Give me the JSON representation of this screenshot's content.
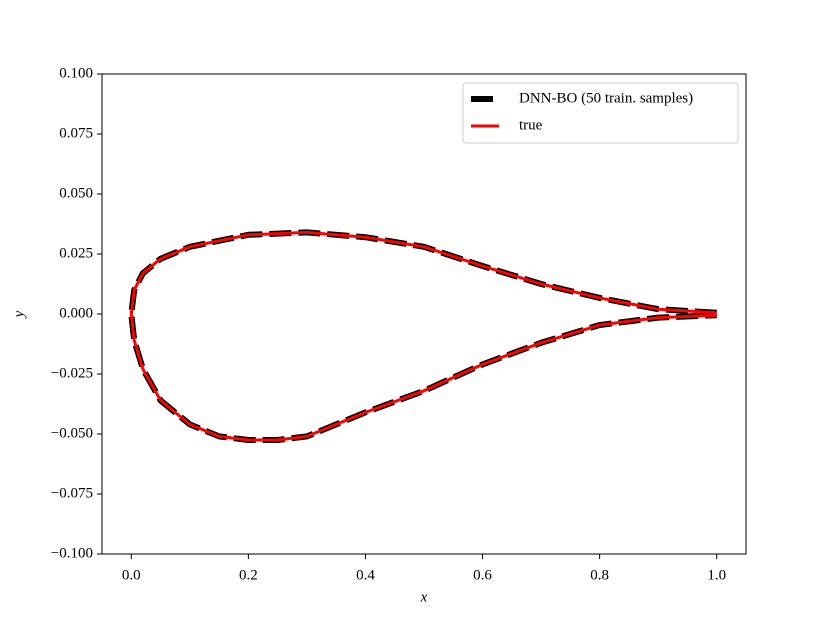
{
  "chart_data": {
    "type": "line",
    "xlabel": "x",
    "ylabel": "y",
    "x": [
      1.0,
      0.9,
      0.8,
      0.7,
      0.6,
      0.5,
      0.4,
      0.3,
      0.2,
      0.1,
      0.05,
      0.02,
      0.005,
      0.0,
      0.005,
      0.02,
      0.05,
      0.1,
      0.15,
      0.2,
      0.25,
      0.3,
      0.4,
      0.5,
      0.6,
      0.7,
      0.8,
      0.9,
      1.0
    ],
    "series": [
      {
        "name": "DNN-BO (50 train. samples)",
        "color": "#000000",
        "dashed": true,
        "values": [
          0.0005,
          0.002,
          0.0067,
          0.0125,
          0.02,
          0.028,
          0.032,
          0.034,
          0.033,
          0.028,
          0.023,
          0.017,
          0.01,
          0.0,
          -0.011,
          -0.023,
          -0.036,
          -0.046,
          -0.051,
          -0.0525,
          -0.0525,
          -0.051,
          -0.041,
          -0.032,
          -0.021,
          -0.012,
          -0.0046,
          -0.0015,
          -0.0005
        ]
      },
      {
        "name": "true",
        "color": "#ff0000",
        "dashed": false,
        "values": [
          0.0005,
          0.002,
          0.0067,
          0.0125,
          0.02,
          0.028,
          0.032,
          0.034,
          0.033,
          0.028,
          0.023,
          0.017,
          0.01,
          0.0,
          -0.011,
          -0.023,
          -0.036,
          -0.046,
          -0.051,
          -0.0525,
          -0.0525,
          -0.051,
          -0.041,
          -0.032,
          -0.021,
          -0.012,
          -0.0046,
          -0.0015,
          -0.0005
        ]
      }
    ],
    "xlim": [
      -0.05,
      1.05
    ],
    "xticks": [
      {
        "value": 0,
        "label": "0.0"
      },
      {
        "value": 0.2,
        "label": "0.2"
      },
      {
        "value": 0.4,
        "label": "0.4"
      },
      {
        "value": 0.6,
        "label": "0.6"
      },
      {
        "value": 0.8,
        "label": "0.8"
      },
      {
        "value": 1,
        "label": "1.0"
      }
    ],
    "ylim": [
      -0.1,
      0.1
    ],
    "yticks": [
      {
        "value": -0.1,
        "label": "−0.100"
      },
      {
        "value": -0.075,
        "label": "−0.075"
      },
      {
        "value": -0.05,
        "label": "−0.050"
      },
      {
        "value": -0.025,
        "label": "−0.025"
      },
      {
        "value": 0,
        "label": "0.000"
      },
      {
        "value": 0.025,
        "label": "0.025"
      },
      {
        "value": 0.05,
        "label": "0.050"
      },
      {
        "value": 0.075,
        "label": "0.075"
      },
      {
        "value": 0.1,
        "label": "0.100"
      }
    ],
    "legend": "upper right"
  }
}
